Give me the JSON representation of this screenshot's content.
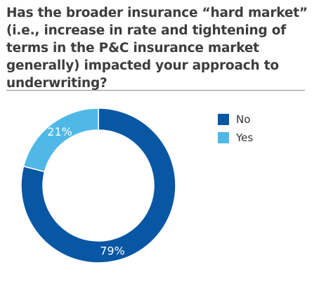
{
  "question": "Has the broader insurance “hard market” (i.e., increase in rate and tightening of terms in the P&C insurance market generally) impacted your approach to underwriting?",
  "chart_data": {
    "type": "pie",
    "donut": true,
    "categories": [
      "No",
      "Yes"
    ],
    "values": [
      79,
      21
    ],
    "value_labels": [
      "79%",
      "21%"
    ],
    "colors": [
      "#0857a5",
      "#4fb8e6"
    ],
    "legend_placement": "right"
  }
}
